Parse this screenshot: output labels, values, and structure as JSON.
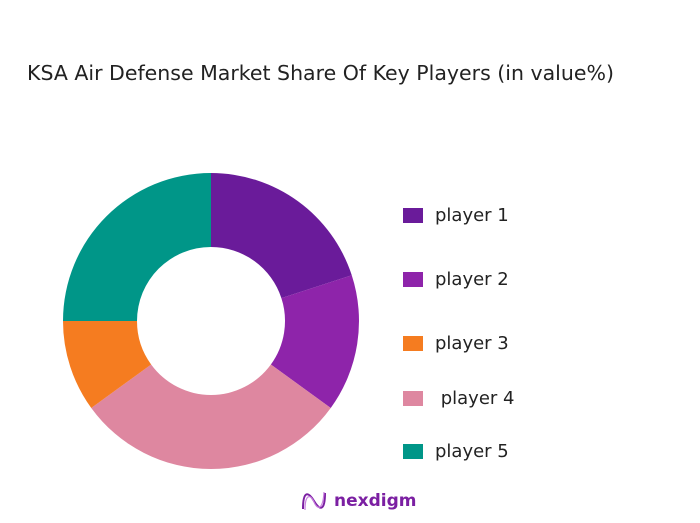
{
  "chart_data": {
    "type": "pie",
    "subtype": "donut",
    "title": "KSA Air Defense Market Share Of Key Players (in value%)",
    "categories": [
      "player 1",
      "player 2",
      "player 3",
      " player 4",
      "player 5"
    ],
    "values": [
      20,
      15,
      10,
      30,
      25
    ],
    "colors": [
      "#6a1b9a",
      "#8e24aa",
      "#f57c20",
      "#de87a0",
      "#009688"
    ],
    "draw_order": [
      0,
      1,
      3,
      2,
      4
    ],
    "legend_position": "right"
  },
  "branding": {
    "logo_text": "nexdigm"
  }
}
